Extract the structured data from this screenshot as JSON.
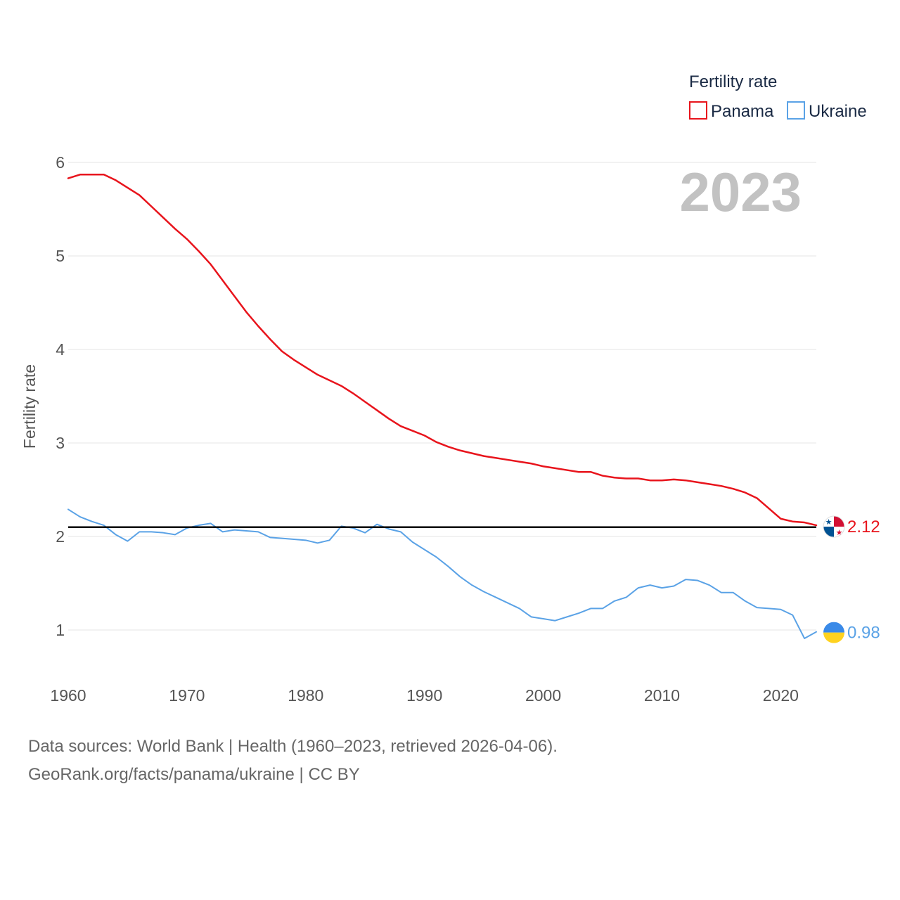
{
  "chart_data": {
    "type": "line",
    "title": "2023",
    "legend_title": "Fertility rate",
    "legend_position": "top-right",
    "ylabel": "Fertility rate",
    "xlabel": "",
    "xlim": [
      1960,
      2023
    ],
    "ylim": [
      0.5,
      6.2
    ],
    "x_ticks": [
      1960,
      1970,
      1980,
      1990,
      2000,
      2010,
      2020
    ],
    "y_ticks": [
      1,
      2,
      3,
      4,
      5,
      6
    ],
    "grid": true,
    "reference_line": 2.1,
    "x": [
      1960,
      1961,
      1962,
      1963,
      1964,
      1965,
      1966,
      1967,
      1968,
      1969,
      1970,
      1971,
      1972,
      1973,
      1974,
      1975,
      1976,
      1977,
      1978,
      1979,
      1980,
      1981,
      1982,
      1983,
      1984,
      1985,
      1986,
      1987,
      1988,
      1989,
      1990,
      1991,
      1992,
      1993,
      1994,
      1995,
      1996,
      1997,
      1998,
      1999,
      2000,
      2001,
      2002,
      2003,
      2004,
      2005,
      2006,
      2007,
      2008,
      2009,
      2010,
      2011,
      2012,
      2013,
      2014,
      2015,
      2016,
      2017,
      2018,
      2019,
      2020,
      2021,
      2022,
      2023
    ],
    "series": [
      {
        "name": "Panama",
        "color": "#e8141c",
        "end_label": "2.12",
        "values": [
          5.83,
          5.87,
          5.87,
          5.87,
          5.81,
          5.73,
          5.65,
          5.53,
          5.41,
          5.29,
          5.18,
          5.05,
          4.91,
          4.74,
          4.57,
          4.4,
          4.25,
          4.11,
          3.98,
          3.89,
          3.81,
          3.73,
          3.67,
          3.61,
          3.53,
          3.44,
          3.35,
          3.26,
          3.18,
          3.13,
          3.08,
          3.01,
          2.96,
          2.92,
          2.89,
          2.86,
          2.84,
          2.82,
          2.8,
          2.78,
          2.75,
          2.73,
          2.71,
          2.69,
          2.69,
          2.65,
          2.63,
          2.62,
          2.62,
          2.6,
          2.6,
          2.61,
          2.6,
          2.58,
          2.56,
          2.54,
          2.51,
          2.47,
          2.41,
          2.3,
          2.19,
          2.16,
          2.15,
          2.12
        ]
      },
      {
        "name": "Ukraine",
        "color": "#5aa2e6",
        "end_label": "0.98",
        "values": [
          2.29,
          2.21,
          2.16,
          2.12,
          2.02,
          1.95,
          2.05,
          2.05,
          2.04,
          2.02,
          2.09,
          2.12,
          2.14,
          2.05,
          2.07,
          2.06,
          2.05,
          1.99,
          1.98,
          1.97,
          1.96,
          1.93,
          1.96,
          2.11,
          2.09,
          2.04,
          2.13,
          2.08,
          2.05,
          1.94,
          1.86,
          1.78,
          1.68,
          1.57,
          1.48,
          1.41,
          1.35,
          1.29,
          1.23,
          1.14,
          1.12,
          1.1,
          1.14,
          1.18,
          1.23,
          1.23,
          1.31,
          1.35,
          1.45,
          1.48,
          1.45,
          1.47,
          1.54,
          1.53,
          1.48,
          1.4,
          1.4,
          1.31,
          1.24,
          1.23,
          1.22,
          1.16,
          0.91,
          0.98
        ]
      }
    ]
  },
  "footer": {
    "line1": "Data sources: World Bank | Health (1960–2023, retrieved 2026-04-06).",
    "line2": "GeoRank.org/facts/panama/ukraine | CC BY"
  }
}
